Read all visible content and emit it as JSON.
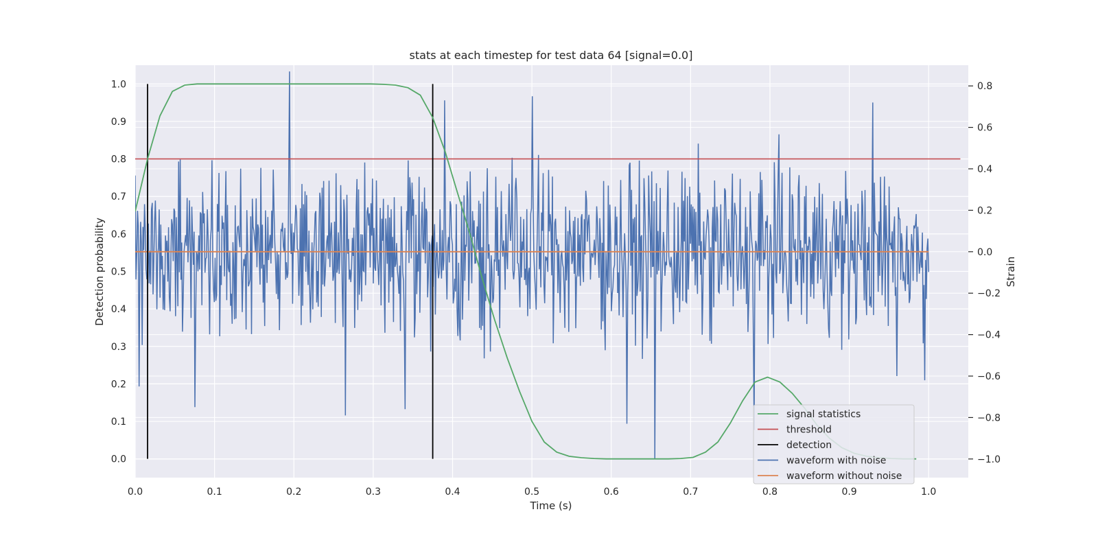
{
  "chart_data": {
    "type": "line",
    "title": "stats at each timestep for test data 64 [signal=0.0]",
    "xlabel": "Time (s)",
    "ylabel": "Detection probability",
    "y2label": "Strain",
    "xlim": [
      0.0,
      1.05
    ],
    "ylim": [
      -0.05,
      1.05
    ],
    "y2lim": [
      -1.09,
      0.9
    ],
    "xticks": [
      0.0,
      0.1,
      0.2,
      0.3,
      0.4,
      0.5,
      0.6,
      0.7,
      0.8,
      0.9,
      1.0
    ],
    "xtick_labels": [
      "0.0",
      "0.1",
      "0.2",
      "0.3",
      "0.4",
      "0.5",
      "0.6",
      "0.7",
      "0.8",
      "0.9",
      "1.0"
    ],
    "yticks": [
      0.0,
      0.1,
      0.2,
      0.3,
      0.4,
      0.5,
      0.6,
      0.7,
      0.8,
      0.9,
      1.0
    ],
    "ytick_labels": [
      "0.0",
      "0.1",
      "0.2",
      "0.3",
      "0.4",
      "0.5",
      "0.6",
      "0.7",
      "0.8",
      "0.9",
      "1.0"
    ],
    "y2ticks": [
      0.8,
      0.6,
      0.4,
      0.2,
      0.0,
      -0.2,
      -0.4,
      -0.6,
      -0.8,
      -1.0
    ],
    "y2tick_labels": [
      "0.8",
      "0.6",
      "0.4",
      "0.2",
      "0.0",
      "−0.2",
      "−0.4",
      "−0.6",
      "−0.8",
      "−1.0"
    ],
    "grid": true,
    "legend_position": "lower-right",
    "colors": {
      "background": "#eaeaf2",
      "grid": "#ffffff",
      "signal_statistics": "#55a868",
      "threshold": "#c44e52",
      "detection": "#000000",
      "waveform_with_noise": "#4c72b0",
      "waveform_without_noise": "#dd8452"
    },
    "legend": [
      {
        "key": "signal_statistics",
        "label": "signal statistics"
      },
      {
        "key": "threshold",
        "label": "threshold"
      },
      {
        "key": "detection",
        "label": "detection"
      },
      {
        "key": "waveform_with_noise",
        "label": "waveform with noise"
      },
      {
        "key": "waveform_without_noise",
        "label": "waveform without noise"
      }
    ],
    "signal_statistics": {
      "x": [
        0.0,
        0.0156,
        0.0312,
        0.0469,
        0.0625,
        0.0781,
        0.0938,
        0.1094,
        0.125,
        0.1406,
        0.1562,
        0.1719,
        0.1875,
        0.2031,
        0.2188,
        0.2344,
        0.25,
        0.2656,
        0.2812,
        0.2969,
        0.3125,
        0.3281,
        0.3438,
        0.3594,
        0.375,
        0.3906,
        0.4062,
        0.4219,
        0.4375,
        0.4531,
        0.4688,
        0.4844,
        0.5,
        0.5156,
        0.5312,
        0.5469,
        0.5625,
        0.5781,
        0.5938,
        0.6094,
        0.625,
        0.6406,
        0.6562,
        0.6719,
        0.6875,
        0.7031,
        0.7188,
        0.7344,
        0.75,
        0.7656,
        0.7812,
        0.7969,
        0.8125,
        0.8281,
        0.8438,
        0.8594,
        0.875,
        0.8906,
        0.9062,
        0.9219,
        0.9375,
        0.9531,
        0.9688,
        0.9844
      ],
      "y": [
        0.66,
        0.8,
        0.915,
        0.98,
        0.997,
        1.0,
        1.0,
        1.0,
        1.0,
        1.0,
        1.0,
        1.0,
        1.0,
        1.0,
        1.0,
        1.0,
        1.0,
        1.0,
        1.0,
        1.0,
        0.999,
        0.997,
        0.99,
        0.97,
        0.91,
        0.82,
        0.71,
        0.6,
        0.48,
        0.37,
        0.27,
        0.18,
        0.1,
        0.045,
        0.018,
        0.007,
        0.003,
        0.001,
        0.0,
        0.0,
        0.0,
        0.0,
        0.0,
        0.0,
        0.001,
        0.004,
        0.018,
        0.045,
        0.095,
        0.155,
        0.205,
        0.218,
        0.205,
        0.175,
        0.135,
        0.09,
        0.055,
        0.03,
        0.015,
        0.007,
        0.003,
        0.001,
        0.0,
        0.0
      ]
    },
    "threshold": {
      "x": [
        0.0,
        1.04
      ],
      "y": 0.8
    },
    "detections": [
      {
        "x": 0.0156,
        "y_range": [
          0.0,
          1.0
        ]
      },
      {
        "x": 0.375,
        "y_range": [
          0.0,
          1.0
        ]
      }
    ],
    "waveform_without_noise": {
      "x": [
        0.0,
        1.0
      ],
      "strain": 0.0
    },
    "waveform_with_noise": {
      "samples": 1024,
      "x_range": [
        0.0,
        1.0
      ],
      "strain_peaks": [
        {
          "x": 0.195,
          "strain": 0.87
        },
        {
          "x": 0.655,
          "strain": -1.0
        },
        {
          "x": 0.005,
          "strain": -0.65
        },
        {
          "x": 0.075,
          "strain": -0.75
        },
        {
          "x": 0.265,
          "strain": -0.79
        },
        {
          "x": 0.34,
          "strain": -0.76
        },
        {
          "x": 0.39,
          "strain": 0.73
        },
        {
          "x": 0.5,
          "strain": 0.75
        },
        {
          "x": 0.62,
          "strain": -0.83
        },
        {
          "x": 0.78,
          "strain": -0.86
        },
        {
          "x": 0.93,
          "strain": 0.72
        },
        {
          "x": 0.96,
          "strain": -0.6
        },
        {
          "x": 0.995,
          "strain": -0.62
        }
      ]
    }
  }
}
